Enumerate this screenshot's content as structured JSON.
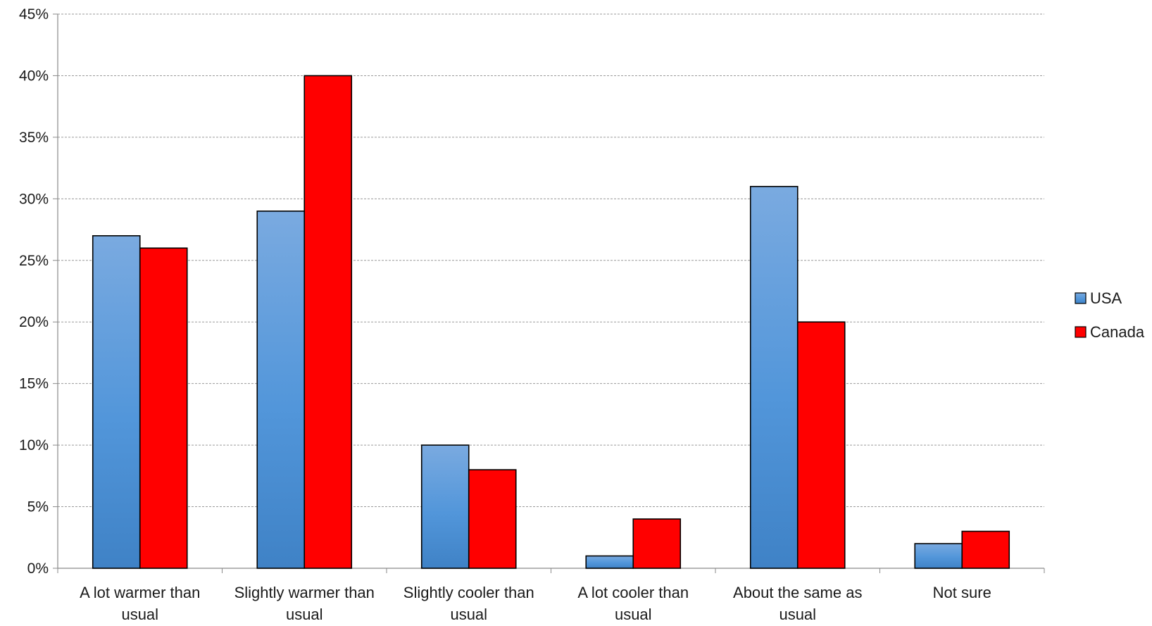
{
  "chart_data": {
    "type": "bar",
    "title": "",
    "xlabel": "",
    "ylabel": "",
    "categories": [
      [
        "A lot warmer than",
        "usual"
      ],
      [
        "Slightly warmer than",
        "usual"
      ],
      [
        "Slightly cooler than",
        "usual"
      ],
      [
        "A lot cooler than",
        "usual"
      ],
      [
        "About the same as",
        "usual"
      ],
      [
        "Not sure"
      ]
    ],
    "series": [
      {
        "name": "USA",
        "values": [
          27,
          29,
          10,
          1,
          31,
          2
        ],
        "color": "#4f8fd6"
      },
      {
        "name": "Canada",
        "values": [
          26,
          40,
          8,
          4,
          20,
          3
        ],
        "color": "#ff0000"
      }
    ],
    "ylim": [
      0,
      45
    ],
    "yticks": [
      0,
      5,
      10,
      15,
      20,
      25,
      30,
      35,
      40,
      45
    ],
    "ytick_suffix": "%",
    "grid": true,
    "legend_position": "right"
  }
}
